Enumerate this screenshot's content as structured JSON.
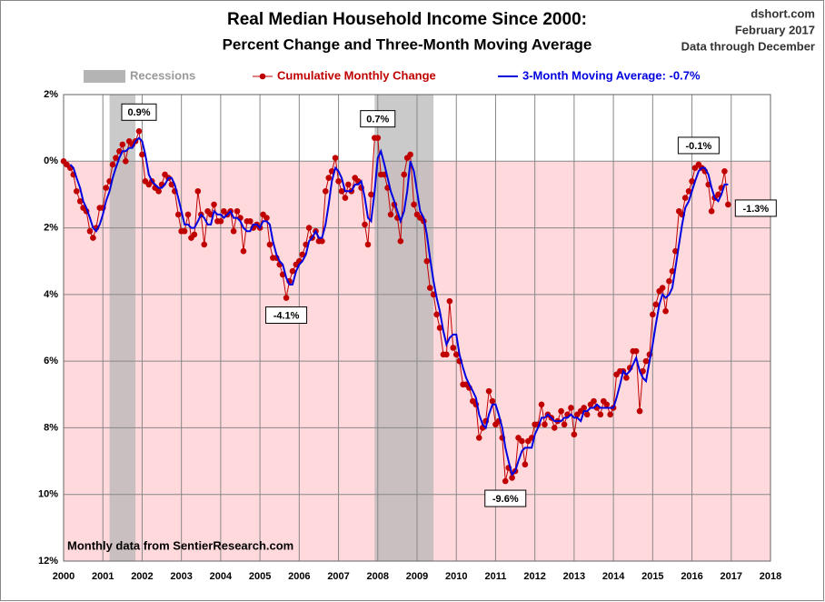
{
  "chart_data": {
    "type": "line",
    "title": "Real Median Household Income Since 2000:",
    "subtitle": "Percent Change and Three-Month Moving Average",
    "source": "dshort.com",
    "date": "February 2017",
    "note": "Data through December",
    "footnote": "Monthly data from SentierResearch.com",
    "recession_label": "Recessions",
    "recession_color": "#b4b4b4",
    "recessions": [
      [
        2001.17,
        2001.83
      ],
      [
        2007.92,
        2009.42
      ]
    ],
    "negative_shade": "#ffd9dc",
    "xlim": [
      2000,
      2018
    ],
    "xticks": [
      2000,
      2001,
      2002,
      2003,
      2004,
      2005,
      2006,
      2007,
      2008,
      2009,
      2010,
      2011,
      2012,
      2013,
      2014,
      2015,
      2016,
      2017,
      2018
    ],
    "ylim": [
      -12,
      2
    ],
    "yticks": [
      {
        "value": 2,
        "label": "2%"
      },
      {
        "value": 0,
        "label": "0%"
      },
      {
        "value": -2,
        "label": "2%"
      },
      {
        "value": -4,
        "label": "4%"
      },
      {
        "value": -6,
        "label": "6%"
      },
      {
        "value": -8,
        "label": "8%"
      },
      {
        "value": -10,
        "label": "10%"
      },
      {
        "value": -12,
        "label": "12%"
      }
    ],
    "grid": true,
    "x": [
      2000,
      2000.08,
      2000.17,
      2000.25,
      2000.33,
      2000.42,
      2000.5,
      2000.58,
      2000.67,
      2000.75,
      2000.83,
      2000.92,
      2001,
      2001.08,
      2001.17,
      2001.25,
      2001.33,
      2001.42,
      2001.5,
      2001.58,
      2001.67,
      2001.75,
      2001.83,
      2001.92,
      2002,
      2002.08,
      2002.17,
      2002.25,
      2002.33,
      2002.42,
      2002.5,
      2002.58,
      2002.67,
      2002.75,
      2002.83,
      2002.92,
      2003,
      2003.08,
      2003.17,
      2003.25,
      2003.33,
      2003.42,
      2003.5,
      2003.58,
      2003.67,
      2003.75,
      2003.83,
      2003.92,
      2004,
      2004.08,
      2004.17,
      2004.25,
      2004.33,
      2004.42,
      2004.5,
      2004.58,
      2004.67,
      2004.75,
      2004.83,
      2004.92,
      2005,
      2005.08,
      2005.17,
      2005.25,
      2005.33,
      2005.42,
      2005.5,
      2005.58,
      2005.67,
      2005.75,
      2005.83,
      2005.92,
      2006,
      2006.08,
      2006.17,
      2006.25,
      2006.33,
      2006.42,
      2006.5,
      2006.58,
      2006.67,
      2006.75,
      2006.83,
      2006.92,
      2007,
      2007.08,
      2007.17,
      2007.25,
      2007.33,
      2007.42,
      2007.5,
      2007.58,
      2007.67,
      2007.75,
      2007.83,
      2007.92,
      2008,
      2008.08,
      2008.17,
      2008.25,
      2008.33,
      2008.42,
      2008.5,
      2008.58,
      2008.67,
      2008.75,
      2008.83,
      2008.92,
      2009,
      2009.08,
      2009.17,
      2009.25,
      2009.33,
      2009.42,
      2009.5,
      2009.58,
      2009.67,
      2009.75,
      2009.83,
      2009.92,
      2010,
      2010.08,
      2010.17,
      2010.25,
      2010.33,
      2010.42,
      2010.5,
      2010.58,
      2010.67,
      2010.75,
      2010.83,
      2010.92,
      2011,
      2011.08,
      2011.17,
      2011.25,
      2011.33,
      2011.42,
      2011.5,
      2011.58,
      2011.67,
      2011.75,
      2011.83,
      2011.92,
      2012,
      2012.08,
      2012.17,
      2012.25,
      2012.33,
      2012.42,
      2012.5,
      2012.58,
      2012.67,
      2012.75,
      2012.83,
      2012.92,
      2013,
      2013.08,
      2013.17,
      2013.25,
      2013.33,
      2013.42,
      2013.5,
      2013.58,
      2013.67,
      2013.75,
      2013.83,
      2013.92,
      2014,
      2014.08,
      2014.17,
      2014.25,
      2014.33,
      2014.42,
      2014.5,
      2014.58,
      2014.67,
      2014.75,
      2014.83,
      2014.92,
      2015,
      2015.08,
      2015.17,
      2015.25,
      2015.33,
      2015.42,
      2015.5,
      2015.58,
      2015.67,
      2015.75,
      2015.83,
      2015.92,
      2016,
      2016.08,
      2016.17,
      2016.25,
      2016.33,
      2016.42,
      2016.5,
      2016.58,
      2016.67,
      2016.75,
      2016.83,
      2016.92
    ],
    "series": [
      {
        "name": "Cumulative Monthly Change",
        "color": "#c00000",
        "markers": true,
        "values": [
          0,
          -0.1,
          -0.2,
          -0.4,
          -0.9,
          -1.2,
          -1.4,
          -1.5,
          -2.1,
          -2.3,
          -2.0,
          -1.4,
          -1.4,
          -0.8,
          -0.6,
          -0.1,
          0.1,
          0.3,
          0.5,
          0.0,
          0.6,
          0.5,
          0.6,
          0.9,
          0.2,
          -0.6,
          -0.7,
          -0.6,
          -0.8,
          -0.9,
          -0.7,
          -0.4,
          -0.5,
          -0.7,
          -0.9,
          -1.6,
          -2.1,
          -2.1,
          -1.6,
          -2.3,
          -2.2,
          -0.9,
          -1.6,
          -2.5,
          -1.5,
          -1.6,
          -1.3,
          -1.8,
          -1.8,
          -1.5,
          -1.6,
          -1.5,
          -2.1,
          -1.5,
          -1.7,
          -2.7,
          -1.8,
          -1.8,
          -2.0,
          -1.9,
          -2.0,
          -1.6,
          -1.7,
          -2.5,
          -2.9,
          -2.9,
          -3.1,
          -3.4,
          -4.1,
          -3.6,
          -3.3,
          -3.1,
          -3.0,
          -2.8,
          -2.5,
          -2.0,
          -2.3,
          -2.1,
          -2.4,
          -2.4,
          -0.9,
          -0.5,
          -0.3,
          0.1,
          -0.6,
          -0.9,
          -1.1,
          -0.7,
          -0.9,
          -0.5,
          -0.6,
          -0.8,
          -1.9,
          -2.5,
          -1.0,
          0.7,
          0.7,
          -0.4,
          -0.4,
          -0.8,
          -1.6,
          -1.3,
          -1.7,
          -2.4,
          -0.4,
          0.1,
          0.2,
          -1.3,
          -1.6,
          -1.7,
          -1.8,
          -3.0,
          -3.8,
          -4.0,
          -4.6,
          -5.0,
          -5.8,
          -5.8,
          -4.2,
          -5.6,
          -5.8,
          -6.0,
          -6.7,
          -6.7,
          -6.8,
          -7.2,
          -7.3,
          -8.3,
          -8.0,
          -7.8,
          -6.9,
          -7.2,
          -7.9,
          -7.8,
          -8.3,
          -9.6,
          -9.2,
          -9.5,
          -9.3,
          -8.3,
          -8.4,
          -9.1,
          -8.4,
          -8.3,
          -7.9,
          -7.9,
          -7.3,
          -7.9,
          -7.6,
          -7.7,
          -8.0,
          -7.8,
          -7.5,
          -7.9,
          -7.6,
          -7.4,
          -8.2,
          -7.6,
          -7.5,
          -7.4,
          -7.6,
          -7.3,
          -7.2,
          -7.4,
          -7.6,
          -7.2,
          -7.3,
          -7.6,
          -7.4,
          -6.4,
          -6.3,
          -6.3,
          -6.5,
          -6.2,
          -5.7,
          -5.7,
          -7.5,
          -6.3,
          -6.0,
          -5.8,
          -4.6,
          -4.3,
          -3.9,
          -3.8,
          -4.5,
          -3.6,
          -3.3,
          -2.7,
          -1.5,
          -1.6,
          -1.1,
          -0.9,
          -0.6,
          -0.2,
          -0.1,
          -0.2,
          -0.3,
          -0.7,
          -1.5,
          -1.1,
          -1.0,
          -0.8,
          -0.3,
          -1.3
        ],
        "value_labels": [
          null,
          null,
          null,
          null,
          null,
          null,
          null,
          null,
          null,
          null,
          null,
          null,
          null,
          null,
          null,
          null,
          null,
          null,
          null,
          null,
          null,
          null,
          null,
          "0.9%",
          null,
          null,
          null,
          null,
          null,
          null,
          null,
          null,
          null,
          null,
          null,
          null,
          null,
          null,
          null,
          null,
          null,
          null,
          null,
          null,
          null,
          null,
          null,
          null,
          null,
          null,
          null,
          null,
          null,
          null,
          null,
          null,
          null,
          null,
          null,
          null,
          null,
          null,
          null,
          null,
          null,
          null,
          null,
          null,
          "-4.1%",
          null,
          null,
          null,
          null,
          null,
          null,
          null,
          null,
          null,
          null,
          null,
          null,
          null,
          null,
          null,
          null,
          null,
          null,
          null,
          null,
          null,
          null,
          null,
          null,
          null,
          null,
          null,
          "0.7%",
          null,
          null,
          null,
          null,
          null,
          null,
          null,
          null,
          null,
          null,
          null,
          null,
          null,
          null,
          null,
          null,
          null,
          null,
          null,
          null,
          null,
          null,
          null,
          null,
          null,
          null,
          null,
          null,
          null,
          null,
          null,
          null,
          null,
          null,
          null,
          null,
          null,
          null,
          "-9.6%",
          null,
          null,
          null,
          null,
          null,
          null,
          null,
          null,
          null,
          null,
          null,
          null,
          null,
          null,
          null,
          null,
          null,
          null,
          null,
          null,
          null,
          null,
          null,
          null,
          null,
          null,
          null,
          null,
          null,
          null,
          null,
          null,
          null,
          null,
          null,
          null,
          null,
          null,
          null,
          null,
          null,
          null,
          null,
          null,
          null,
          null,
          null,
          null,
          null,
          null,
          null,
          null,
          null,
          null,
          null,
          null,
          null,
          null,
          "-0.1%",
          null,
          null,
          null,
          null,
          null,
          null,
          null,
          null,
          "-1.3%"
        ]
      },
      {
        "name": "3-Month Moving Average: -0.7%",
        "color": "#0000e0",
        "markers": false,
        "values": [
          null,
          null,
          -0.1,
          -0.2,
          -0.5,
          -0.8,
          -1.2,
          -1.4,
          -1.7,
          -2.0,
          -2.1,
          -1.9,
          -1.6,
          -1.2,
          -0.9,
          -0.5,
          -0.2,
          0.1,
          0.3,
          0.3,
          0.4,
          0.4,
          0.6,
          0.7,
          0.6,
          0.2,
          -0.4,
          -0.6,
          -0.7,
          -0.8,
          -0.8,
          -0.7,
          -0.5,
          -0.5,
          -0.7,
          -1.1,
          -1.5,
          -1.9,
          -1.9,
          -2.0,
          -2.0,
          -1.8,
          -1.6,
          -1.7,
          -1.9,
          -1.9,
          -1.5,
          -1.6,
          -1.6,
          -1.7,
          -1.6,
          -1.5,
          -1.7,
          -1.7,
          -1.8,
          -2.0,
          -2.1,
          -2.1,
          -1.9,
          -1.9,
          -2.0,
          -1.8,
          -1.8,
          -1.9,
          -2.4,
          -2.8,
          -3.0,
          -3.1,
          -3.5,
          -3.7,
          -3.7,
          -3.3,
          -3.1,
          -3.0,
          -2.8,
          -2.4,
          -2.3,
          -2.1,
          -2.3,
          -2.3,
          -1.9,
          -1.3,
          -0.6,
          -0.2,
          -0.3,
          -0.5,
          -0.9,
          -0.9,
          -0.9,
          -0.7,
          -0.7,
          -0.6,
          -1.1,
          -1.7,
          -1.8,
          -0.9,
          0.1,
          0.3,
          -0.1,
          -0.5,
          -0.9,
          -1.2,
          -1.5,
          -1.8,
          -1.5,
          -0.9,
          0.0,
          -0.3,
          -0.9,
          -1.5,
          -1.7,
          -2.2,
          -2.9,
          -3.6,
          -4.1,
          -4.5,
          -5.1,
          -5.5,
          -5.3,
          -5.2,
          -5.2,
          -5.8,
          -6.2,
          -6.5,
          -6.7,
          -6.9,
          -7.1,
          -7.6,
          -7.9,
          -8.0,
          -7.6,
          -7.3,
          -7.3,
          -7.6,
          -8.0,
          -8.6,
          -9.0,
          -9.4,
          -9.3,
          -9.0,
          -8.7,
          -8.6,
          -8.6,
          -8.6,
          -8.2,
          -8.0,
          -7.7,
          -7.7,
          -7.6,
          -7.7,
          -7.8,
          -7.8,
          -7.8,
          -7.7,
          -7.7,
          -7.6,
          -7.7,
          -7.7,
          -7.8,
          -7.5,
          -7.5,
          -7.4,
          -7.4,
          -7.3,
          -7.4,
          -7.4,
          -7.4,
          -7.4,
          -7.4,
          -7.1,
          -6.7,
          -6.3,
          -6.4,
          -6.3,
          -6.1,
          -5.9,
          -6.3,
          -6.5,
          -6.6,
          -6.0,
          -5.5,
          -4.9,
          -4.3,
          -4.0,
          -4.1,
          -4.0,
          -3.8,
          -3.2,
          -2.5,
          -1.9,
          -1.4,
          -1.2,
          -0.9,
          -0.6,
          -0.3,
          -0.2,
          -0.2,
          -0.4,
          -0.8,
          -1.1,
          -1.2,
          -1.0,
          -0.7,
          -0.7
        ]
      }
    ]
  }
}
